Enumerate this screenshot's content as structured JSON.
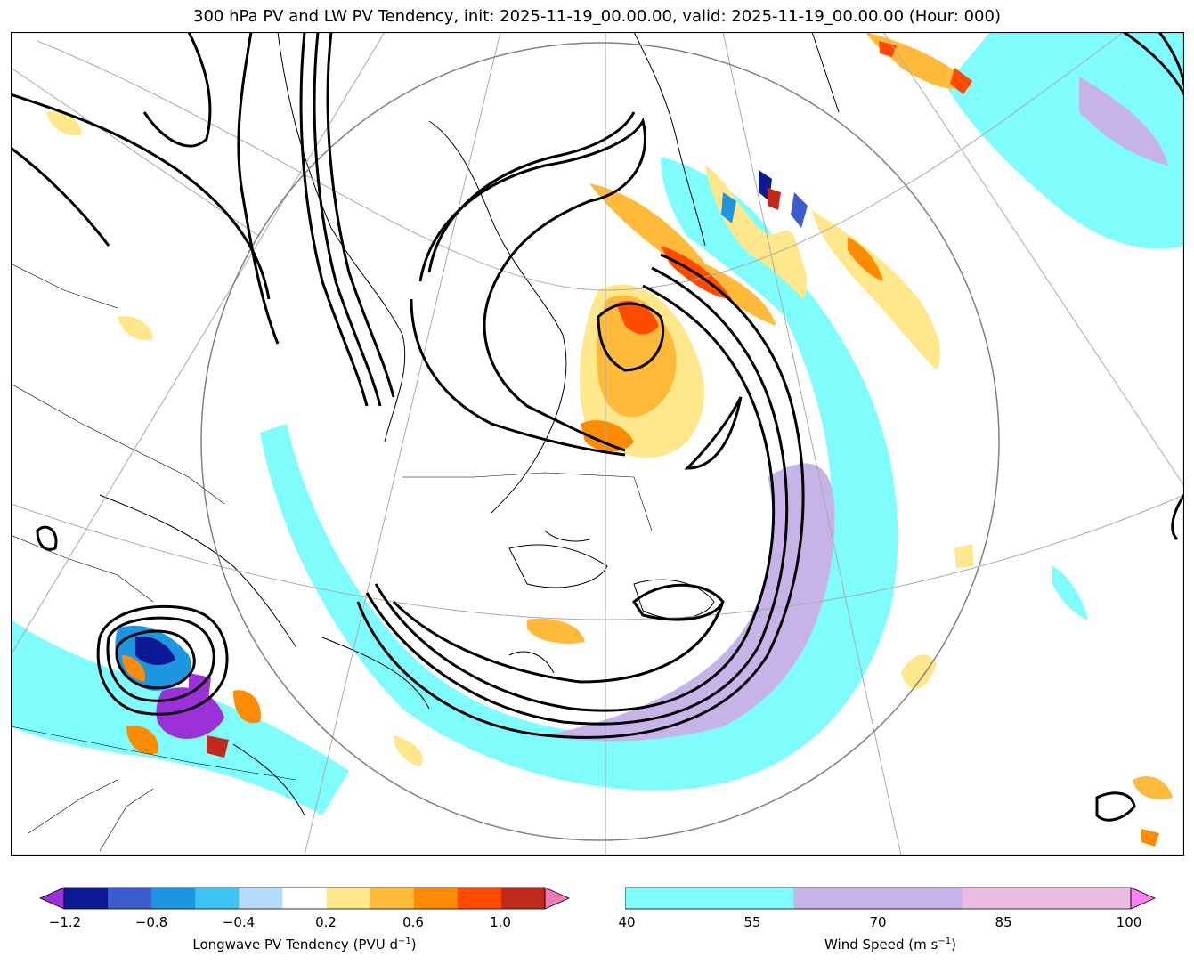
{
  "title": "300 hPa PV and LW PV Tendency, init: 2025-11-19_00.00.00, valid: 2025-11-19_00.00.00 (Hour: 000)",
  "colorbar_pv": {
    "label": "Longwave PV Tendency (PVU d",
    "label_sup": "−1",
    "label_end": ")",
    "ticks": [
      "−1.2",
      "−0.8",
      "−0.4",
      "0.2",
      "0.6",
      "1.0"
    ],
    "colors": [
      "#9a30d8",
      "#0c1a96",
      "#3a5ccc",
      "#1c96e0",
      "#3cc4f4",
      "#b4dcfa",
      "#ffffff",
      "#ffe88c",
      "#ffba3a",
      "#ff8c00",
      "#ff4a00",
      "#c02a1a",
      "#f07ab8"
    ]
  },
  "colorbar_wind": {
    "label": "Wind Speed (m s",
    "label_sup": "−1",
    "label_end": ")",
    "ticks": [
      "40",
      "55",
      "70",
      "85",
      "100"
    ],
    "colors": [
      "#7ffcfc",
      "#c6b4e8",
      "#ecbce0",
      "#ff80f8"
    ]
  }
}
